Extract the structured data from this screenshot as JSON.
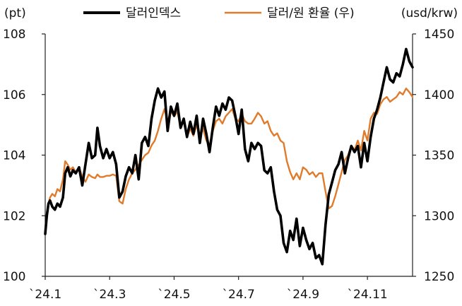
{
  "chart_data": {
    "type": "line",
    "left_unit": "(pt)",
    "right_unit": "(usd/krw)",
    "left_axis": {
      "min": 100,
      "max": 108,
      "ticks": [
        100,
        102,
        104,
        106,
        108
      ]
    },
    "right_axis": {
      "min": 1250,
      "max": 1450,
      "ticks": [
        1250,
        1300,
        1350,
        1400,
        1450
      ]
    },
    "x_ticks": [
      {
        "x": 0,
        "label": "`24.1"
      },
      {
        "x": 2,
        "label": "`24.3"
      },
      {
        "x": 4,
        "label": "`24.5"
      },
      {
        "x": 6,
        "label": "`24.7"
      },
      {
        "x": 8,
        "label": "`24.9"
      },
      {
        "x": 10,
        "label": "`24.11"
      }
    ],
    "x_range": [
      0,
      11.4
    ],
    "legend_position": "top",
    "series": [
      {
        "name": "달러인덱스",
        "axis": "left",
        "color": "#000000",
        "x": [
          0,
          0.05,
          0.1,
          0.15,
          0.22,
          0.3,
          0.38,
          0.46,
          0.55,
          0.62,
          0.7,
          0.78,
          0.86,
          0.95,
          1.05,
          1.15,
          1.25,
          1.35,
          1.45,
          1.55,
          1.62,
          1.7,
          1.8,
          1.9,
          2.0,
          2.1,
          2.2,
          2.3,
          2.4,
          2.5,
          2.6,
          2.7,
          2.8,
          2.9,
          3.0,
          3.1,
          3.2,
          3.3,
          3.4,
          3.5,
          3.6,
          3.7,
          3.8,
          3.9,
          4.0,
          4.1,
          4.2,
          4.3,
          4.4,
          4.5,
          4.6,
          4.7,
          4.8,
          4.9,
          5.0,
          5.1,
          5.2,
          5.3,
          5.4,
          5.5,
          5.6,
          5.7,
          5.8,
          5.9,
          6.0,
          6.1,
          6.2,
          6.3,
          6.4,
          6.5,
          6.6,
          6.7,
          6.8,
          6.9,
          7.0,
          7.1,
          7.2,
          7.3,
          7.4,
          7.5,
          7.6,
          7.7,
          7.8,
          7.9,
          8.0,
          8.1,
          8.2,
          8.3,
          8.4,
          8.5,
          8.6,
          8.7,
          8.8,
          8.9,
          9.0,
          9.1,
          9.2,
          9.3,
          9.4,
          9.5,
          9.6,
          9.7,
          9.8,
          9.9,
          10.0,
          10.1,
          10.2,
          10.3,
          10.4,
          10.5,
          10.6,
          10.7,
          10.8,
          10.9,
          11.0,
          11.1,
          11.2,
          11.3,
          11.4
        ],
        "values": [
          101.4,
          102.0,
          102.4,
          102.5,
          102.3,
          102.2,
          102.4,
          102.3,
          102.6,
          103.4,
          103.6,
          103.3,
          103.5,
          103.4,
          103.6,
          103.0,
          103.7,
          104.4,
          103.9,
          104.0,
          104.9,
          104.3,
          103.9,
          104.2,
          103.9,
          104.1,
          103.7,
          102.6,
          102.8,
          103.3,
          103.6,
          103.4,
          104.0,
          103.2,
          104.4,
          104.6,
          104.3,
          105.2,
          105.8,
          106.2,
          105.9,
          106.1,
          104.8,
          105.6,
          105.3,
          105.7,
          104.9,
          105.2,
          104.6,
          105.1,
          104.7,
          105.3,
          104.4,
          105.2,
          104.7,
          104.1,
          104.9,
          105.6,
          105.3,
          105.7,
          105.5,
          105.9,
          105.8,
          105.3,
          104.7,
          105.5,
          104.2,
          103.8,
          104.4,
          104.2,
          104.4,
          104.3,
          103.5,
          103.4,
          103.6,
          102.8,
          102.2,
          102.0,
          101.1,
          100.8,
          101.5,
          101.2,
          101.9,
          101.0,
          101.6,
          101.2,
          100.9,
          101.1,
          100.6,
          100.7,
          100.4,
          101.7,
          102.7,
          103.1,
          103.5,
          103.7,
          104.1,
          103.4,
          103.9,
          104.3,
          104.1,
          104.3,
          103.6,
          104.4,
          103.8,
          104.6,
          105.2,
          105.5,
          105.9,
          106.4,
          106.9,
          106.5,
          106.4,
          106.7,
          106.6,
          107.0,
          107.5,
          107.1,
          106.9
        ]
      },
      {
        "name": "달러/원 환율 (우)",
        "axis": "right",
        "color": "#E07B2C",
        "x": [
          0,
          0.05,
          0.1,
          0.15,
          0.22,
          0.3,
          0.38,
          0.46,
          0.55,
          0.62,
          0.7,
          0.78,
          0.86,
          0.95,
          1.05,
          1.15,
          1.25,
          1.35,
          1.45,
          1.55,
          1.62,
          1.7,
          1.8,
          1.9,
          2.0,
          2.1,
          2.2,
          2.3,
          2.4,
          2.5,
          2.6,
          2.7,
          2.8,
          2.9,
          3.0,
          3.1,
          3.2,
          3.3,
          3.4,
          3.5,
          3.6,
          3.7,
          3.8,
          3.9,
          4.0,
          4.1,
          4.2,
          4.3,
          4.4,
          4.5,
          4.6,
          4.7,
          4.8,
          4.9,
          5.0,
          5.1,
          5.2,
          5.3,
          5.4,
          5.5,
          5.6,
          5.7,
          5.8,
          5.9,
          6.0,
          6.1,
          6.2,
          6.3,
          6.4,
          6.5,
          6.6,
          6.7,
          6.8,
          6.9,
          7.0,
          7.1,
          7.2,
          7.3,
          7.4,
          7.5,
          7.6,
          7.7,
          7.8,
          7.9,
          8.0,
          8.1,
          8.2,
          8.3,
          8.4,
          8.5,
          8.6,
          8.7,
          8.8,
          8.9,
          9.0,
          9.1,
          9.2,
          9.3,
          9.4,
          9.5,
          9.6,
          9.7,
          9.8,
          9.9,
          10.0,
          10.1,
          10.2,
          10.3,
          10.4,
          10.5,
          10.6,
          10.7,
          10.8,
          10.9,
          11.0,
          11.1,
          11.2,
          11.3,
          11.4
        ],
        "values": [
          1288,
          1302,
          1310,
          1315,
          1318,
          1316,
          1322,
          1320,
          1330,
          1345,
          1342,
          1338,
          1340,
          1336,
          1340,
          1332,
          1328,
          1334,
          1332,
          1331,
          1334,
          1332,
          1332,
          1333,
          1333,
          1334,
          1333,
          1312,
          1310,
          1322,
          1330,
          1335,
          1338,
          1342,
          1346,
          1350,
          1352,
          1358,
          1362,
          1370,
          1380,
          1388,
          1378,
          1386,
          1382,
          1386,
          1374,
          1378,
          1365,
          1372,
          1366,
          1375,
          1365,
          1372,
          1362,
          1358,
          1370,
          1378,
          1380,
          1376,
          1382,
          1385,
          1388,
          1380,
          1378,
          1384,
          1378,
          1376,
          1376,
          1380,
          1385,
          1382,
          1376,
          1378,
          1370,
          1366,
          1368,
          1362,
          1360,
          1345,
          1336,
          1330,
          1335,
          1330,
          1340,
          1338,
          1334,
          1336,
          1332,
          1335,
          1335,
          1320,
          1306,
          1308,
          1316,
          1326,
          1336,
          1346,
          1350,
          1358,
          1354,
          1362,
          1354,
          1370,
          1362,
          1380,
          1385,
          1384,
          1392,
          1396,
          1398,
          1394,
          1396,
          1398,
          1402,
          1400,
          1405,
          1402,
          1398
        ]
      }
    ]
  }
}
